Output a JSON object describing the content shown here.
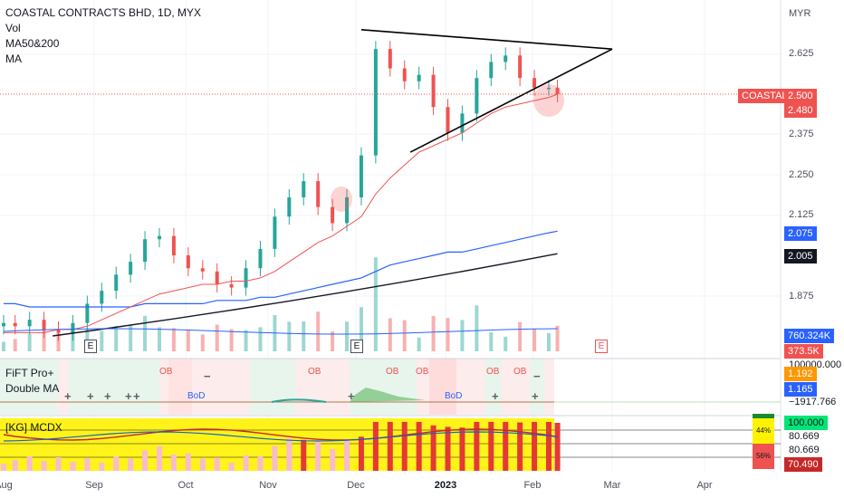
{
  "header": {
    "title": "COASTAL CONTRACTS BHD, 1D, MYX",
    "vol_label": "Vol",
    "ma_pair_label": "MA50&200",
    "ma_label": "MA"
  },
  "axis": {
    "currency": "MYR",
    "price_ticks": [
      "2.625",
      "2.500",
      "2.375",
      "2.250",
      "2.125",
      "1.875"
    ],
    "x_labels": [
      "Aug",
      "Sep",
      "Oct",
      "Nov",
      "Dec",
      "2023",
      "Feb",
      "Mar",
      "Apr"
    ]
  },
  "tags": {
    "symbol": "COASTAL",
    "last_price": "2.500",
    "countdown_price": "2.480",
    "ma_blue": "2.075",
    "ma_black": "2.005",
    "vol_ma": "760.324K",
    "vol": "373.5K"
  },
  "panel1": {
    "name": "FiFT Pro+",
    "sub": "Double MA",
    "ob_label": "OB",
    "bod_label": "BoD",
    "values": [
      "100000.000",
      "1.192",
      "1.165",
      "−1917.766"
    ]
  },
  "panel2": {
    "name": "[KG] MCDX",
    "values": [
      "100.000",
      "80.669",
      "80.669",
      "70.490"
    ],
    "pct_top": "44%",
    "pct_bottom": "56%"
  },
  "earnings_label": "E",
  "colors": {
    "up": "#26a69a",
    "down": "#ef5350",
    "ma50": "#ef5350",
    "ma_blue": "#2962ff",
    "ma_black": "#131722"
  },
  "chart_data": {
    "type": "candlestick",
    "symbol": "COASTAL CONTRACTS BHD",
    "interval": "1D",
    "exchange": "MYX",
    "y_range": [
      1.75,
      2.73
    ],
    "dates": [
      "2022-08-01",
      "2022-08-05",
      "2022-08-10",
      "2022-08-15",
      "2022-08-20",
      "2022-08-25",
      "2022-08-30",
      "2022-09-04",
      "2022-09-09",
      "2022-09-14",
      "2022-09-19",
      "2022-09-24",
      "2022-09-29",
      "2022-10-04",
      "2022-10-09",
      "2022-10-14",
      "2022-10-19",
      "2022-10-24",
      "2022-10-29",
      "2022-11-03",
      "2022-11-08",
      "2022-11-13",
      "2022-11-18",
      "2022-11-23",
      "2022-11-28",
      "2022-12-03",
      "2022-12-08",
      "2022-12-13",
      "2022-12-18",
      "2022-12-23",
      "2022-12-28",
      "2023-01-02",
      "2023-01-07",
      "2023-01-12",
      "2023-01-17",
      "2023-01-22",
      "2023-01-27",
      "2023-02-01",
      "2023-02-06",
      "2023-02-09"
    ],
    "close": [
      1.79,
      1.78,
      1.8,
      1.77,
      1.76,
      1.79,
      1.85,
      1.89,
      1.94,
      1.98,
      2.05,
      2.06,
      2.0,
      1.96,
      1.95,
      1.91,
      1.9,
      1.96,
      2.02,
      2.12,
      2.18,
      2.23,
      2.15,
      2.1,
      2.18,
      2.31,
      2.64,
      2.58,
      2.54,
      2.56,
      2.46,
      2.38,
      2.44,
      2.55,
      2.6,
      2.62,
      2.55,
      2.52,
      2.52,
      2.5
    ],
    "ma50": [
      1.76,
      1.76,
      1.76,
      1.76,
      1.77,
      1.77,
      1.78,
      1.8,
      1.82,
      1.84,
      1.86,
      1.88,
      1.89,
      1.9,
      1.91,
      1.91,
      1.92,
      1.92,
      1.93,
      1.95,
      1.98,
      2.01,
      2.04,
      2.06,
      2.09,
      2.12,
      2.19,
      2.24,
      2.28,
      2.32,
      2.34,
      2.36,
      2.38,
      2.41,
      2.44,
      2.46,
      2.47,
      2.48,
      2.49,
      2.5
    ],
    "ma_blue": [
      1.85,
      1.85,
      1.84,
      1.84,
      1.84,
      1.84,
      1.84,
      1.84,
      1.84,
      1.84,
      1.85,
      1.85,
      1.85,
      1.85,
      1.85,
      1.86,
      1.86,
      1.86,
      1.87,
      1.87,
      1.88,
      1.89,
      1.9,
      1.91,
      1.92,
      1.93,
      1.95,
      1.97,
      1.98,
      1.99,
      2.0,
      2.01,
      2.01,
      2.02,
      2.03,
      2.04,
      2.05,
      2.06,
      2.07,
      2.075
    ],
    "ma_black_segment": {
      "from_date": "2022-08-18",
      "from": 1.75,
      "to_date": "2023-02-09",
      "to": 2.005
    },
    "triangle": {
      "apex_date": "2023-02-28",
      "apex": 2.64,
      "top_start_date": "2022-12-03",
      "top_start": 2.7,
      "bottom_start_date": "2022-12-20",
      "bottom_start": 2.32
    },
    "last_price": 2.5
  }
}
